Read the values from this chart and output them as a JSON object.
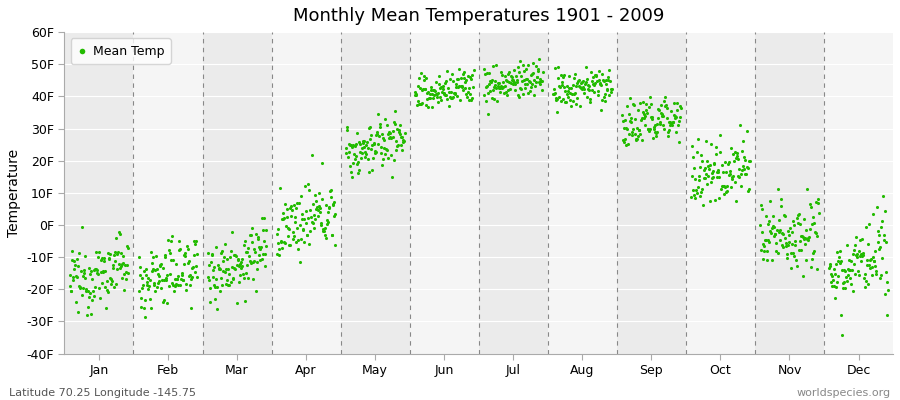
{
  "title": "Monthly Mean Temperatures 1901 - 2009",
  "ylabel": "Temperature",
  "background_color": "#ffffff",
  "plot_bg_color": "#f0f0f0",
  "band_colors": [
    "#ebebeb",
    "#f5f5f5"
  ],
  "dot_color": "#22bb00",
  "dot_size": 5,
  "ylim": [
    -40,
    60
  ],
  "yticks": [
    -40,
    -30,
    -20,
    -10,
    0,
    10,
    20,
    30,
    40,
    50,
    60
  ],
  "ytick_labels": [
    "-40F",
    "-30F",
    "-20F",
    "-10F",
    "0F",
    "10F",
    "20F",
    "30F",
    "40F",
    "50F",
    "60F"
  ],
  "months": [
    "Jan",
    "Feb",
    "Mar",
    "Apr",
    "May",
    "Jun",
    "Jul",
    "Aug",
    "Sep",
    "Oct",
    "Nov",
    "Dec"
  ],
  "month_means_start": [
    -18,
    -18,
    -15,
    -2,
    22,
    40,
    43,
    41,
    30,
    14,
    -5,
    -15
  ],
  "month_means_end": [
    -12,
    -12,
    -8,
    5,
    28,
    44,
    46,
    44,
    35,
    20,
    0,
    -10
  ],
  "month_stds": [
    5,
    5,
    5,
    5,
    4,
    3,
    3,
    3,
    4,
    5,
    6,
    6
  ],
  "n_years": 109,
  "subtitle_left": "Latitude 70.25 Longitude -145.75",
  "subtitle_right": "worldspecies.org",
  "legend_label": "Mean Temp",
  "dashed_line_color": "#888888",
  "spine_color": "#aaaaaa"
}
